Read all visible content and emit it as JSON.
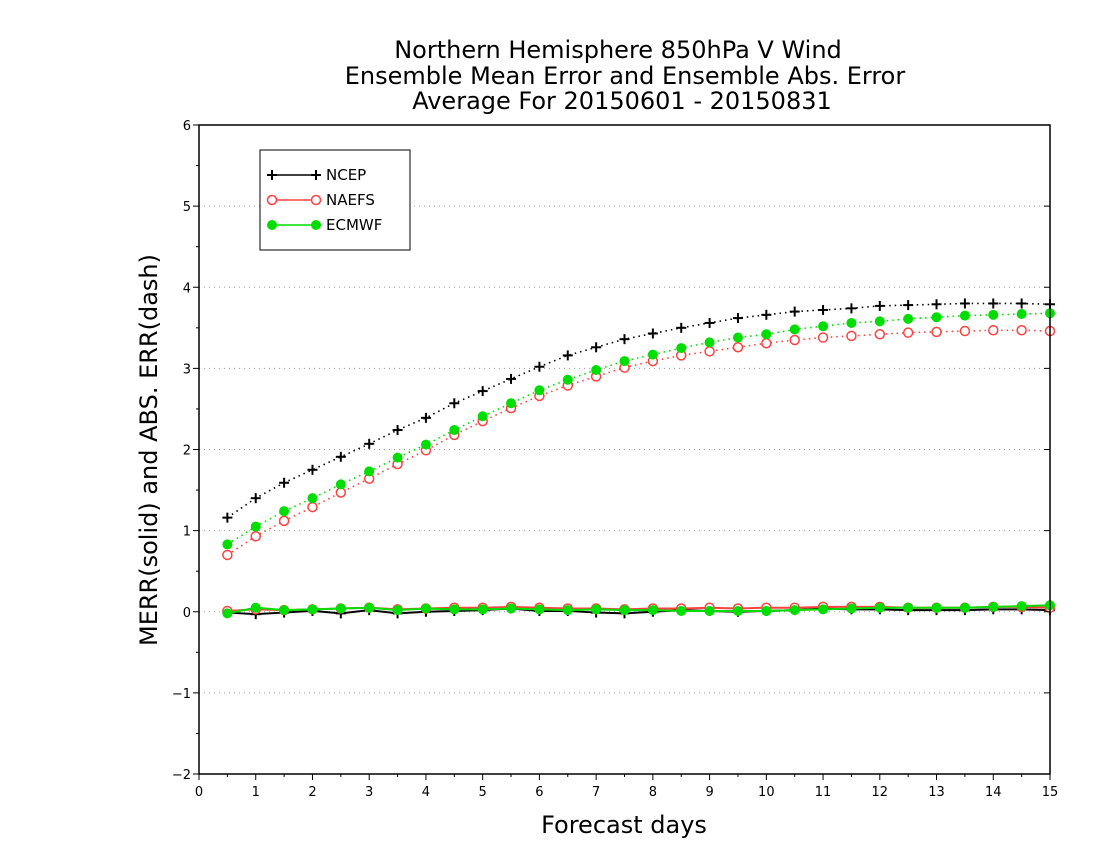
{
  "chart_data": {
    "type": "line",
    "title_lines": [
      "Northern Hemisphere 850hPa V Wind",
      "Ensemble Mean Error and Ensemble Abs. Error",
      "Average For 20150601 - 20150831"
    ],
    "xlabel": "Forecast days",
    "ylabel": "MERR(solid) and ABS. ERR(dash)",
    "xlim": [
      0,
      15
    ],
    "ylim": [
      -2,
      6
    ],
    "x_ticks": [
      "0",
      "1",
      "2",
      "3",
      "4",
      "5",
      "6",
      "7",
      "8",
      "9",
      "10",
      "11",
      "12",
      "13",
      "14",
      "15"
    ],
    "y_ticks": [
      "−2",
      "−1",
      "0",
      "1",
      "2",
      "3",
      "4",
      "5",
      "6"
    ],
    "grid": "horizontal dotted",
    "legend": {
      "placement": "top-left",
      "entries": [
        "NCEP",
        "NAEFS",
        "ECMWF"
      ]
    },
    "x": [
      0.5,
      1,
      1.5,
      2,
      2.5,
      3,
      3.5,
      4,
      4.5,
      5,
      5.5,
      6,
      6.5,
      7,
      7.5,
      8,
      8.5,
      9,
      9.5,
      10,
      10.5,
      11,
      11.5,
      12,
      12.5,
      13,
      13.5,
      14,
      14.5,
      15
    ],
    "series": [
      {
        "name": "NCEP",
        "color": "#000000",
        "marker": "plus",
        "abs_error": [
          1.16,
          1.4,
          1.59,
          1.75,
          1.91,
          2.07,
          2.24,
          2.39,
          2.57,
          2.72,
          2.87,
          3.02,
          3.16,
          3.26,
          3.36,
          3.43,
          3.5,
          3.56,
          3.62,
          3.66,
          3.7,
          3.72,
          3.74,
          3.77,
          3.78,
          3.79,
          3.8,
          3.8,
          3.8,
          3.79
        ],
        "mean_error": [
          -0.01,
          -0.03,
          -0.01,
          0.01,
          -0.02,
          0.02,
          -0.02,
          0.0,
          0.01,
          0.02,
          0.04,
          0.01,
          0.01,
          -0.01,
          -0.02,
          0.0,
          0.02,
          0.01,
          0.0,
          0.01,
          0.02,
          0.04,
          0.03,
          0.03,
          0.02,
          0.02,
          0.02,
          0.03,
          0.03,
          0.02
        ]
      },
      {
        "name": "NAEFS",
        "color": "#ff4040",
        "marker": "open-circle",
        "abs_error": [
          0.7,
          0.93,
          1.12,
          1.29,
          1.47,
          1.64,
          1.82,
          1.99,
          2.18,
          2.35,
          2.51,
          2.66,
          2.79,
          2.9,
          3.01,
          3.09,
          3.16,
          3.21,
          3.26,
          3.31,
          3.35,
          3.38,
          3.4,
          3.42,
          3.44,
          3.45,
          3.46,
          3.47,
          3.47,
          3.46
        ],
        "mean_error": [
          0.01,
          0.03,
          0.02,
          0.03,
          0.04,
          0.05,
          0.03,
          0.04,
          0.05,
          0.05,
          0.06,
          0.05,
          0.04,
          0.04,
          0.03,
          0.04,
          0.04,
          0.05,
          0.04,
          0.05,
          0.05,
          0.06,
          0.06,
          0.06,
          0.05,
          0.05,
          0.05,
          0.06,
          0.06,
          0.05
        ]
      },
      {
        "name": "ECMWF",
        "color": "#00dd00",
        "marker": "filled-circle",
        "abs_error": [
          0.83,
          1.05,
          1.24,
          1.4,
          1.57,
          1.73,
          1.9,
          2.06,
          2.24,
          2.41,
          2.57,
          2.73,
          2.86,
          2.98,
          3.09,
          3.17,
          3.25,
          3.32,
          3.38,
          3.42,
          3.48,
          3.52,
          3.56,
          3.58,
          3.61,
          3.63,
          3.65,
          3.66,
          3.67,
          3.68
        ],
        "mean_error": [
          -0.02,
          0.05,
          0.02,
          0.03,
          0.04,
          0.05,
          0.02,
          0.04,
          0.03,
          0.03,
          0.04,
          0.03,
          0.02,
          0.03,
          0.02,
          0.02,
          0.01,
          0.01,
          0.01,
          0.01,
          0.02,
          0.03,
          0.04,
          0.05,
          0.05,
          0.05,
          0.05,
          0.06,
          0.07,
          0.08
        ]
      }
    ]
  }
}
